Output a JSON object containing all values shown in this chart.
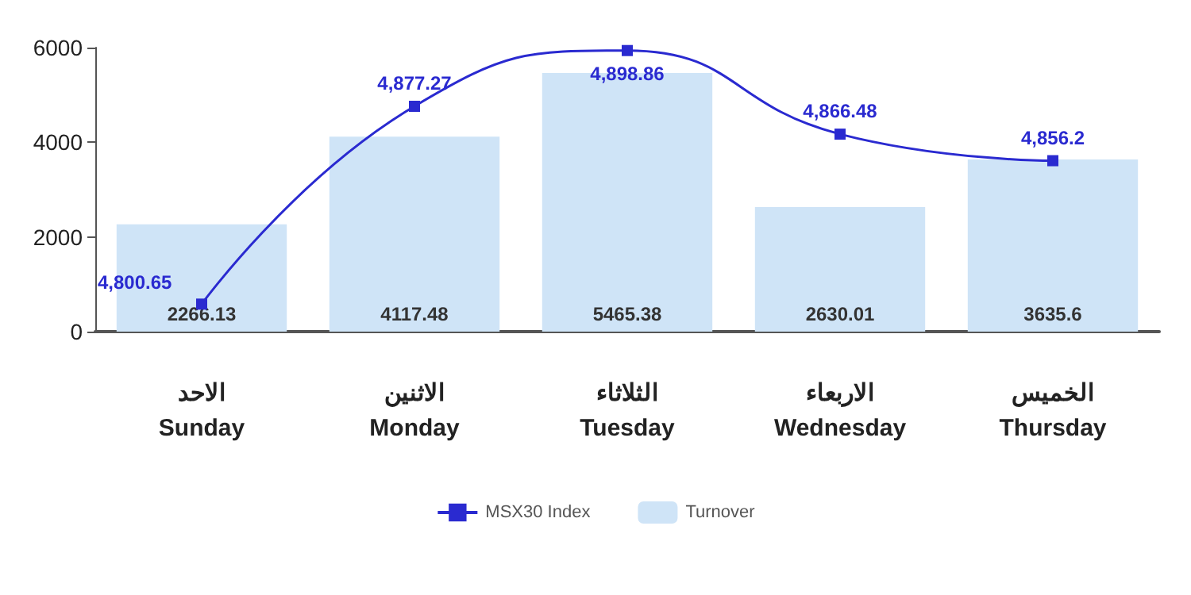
{
  "chart_data": {
    "type": "bar",
    "categories": [
      "الاحد\nSunday",
      "الاثنين\nMonday",
      "الثلاثاء\nTuesday",
      "الاربعاء\nWednesday",
      "الخميس\nThursday"
    ],
    "series": [
      {
        "name": "MSX30 Index",
        "type": "line",
        "axis": "y2",
        "color": "#2a2ad0",
        "values": [
          4800.65,
          4877.27,
          4898.86,
          4866.48,
          4856.2
        ],
        "value_labels": [
          "4,800.65",
          "4,877.27",
          "4,898.86",
          "4,866.48",
          "4,856.2"
        ],
        "marker": "square"
      },
      {
        "name": "Turnover",
        "color": "#cfe4f7",
        "values": [
          2266.13,
          4117.48,
          5465.38,
          2630.01,
          3635.6
        ],
        "data_labels": true
      }
    ],
    "ylim": [
      0,
      6000
    ],
    "yticks": [
      0,
      2000,
      4000,
      6000
    ],
    "y2lim": [
      4790,
      4900
    ],
    "grid": false,
    "legend": "bottom"
  }
}
